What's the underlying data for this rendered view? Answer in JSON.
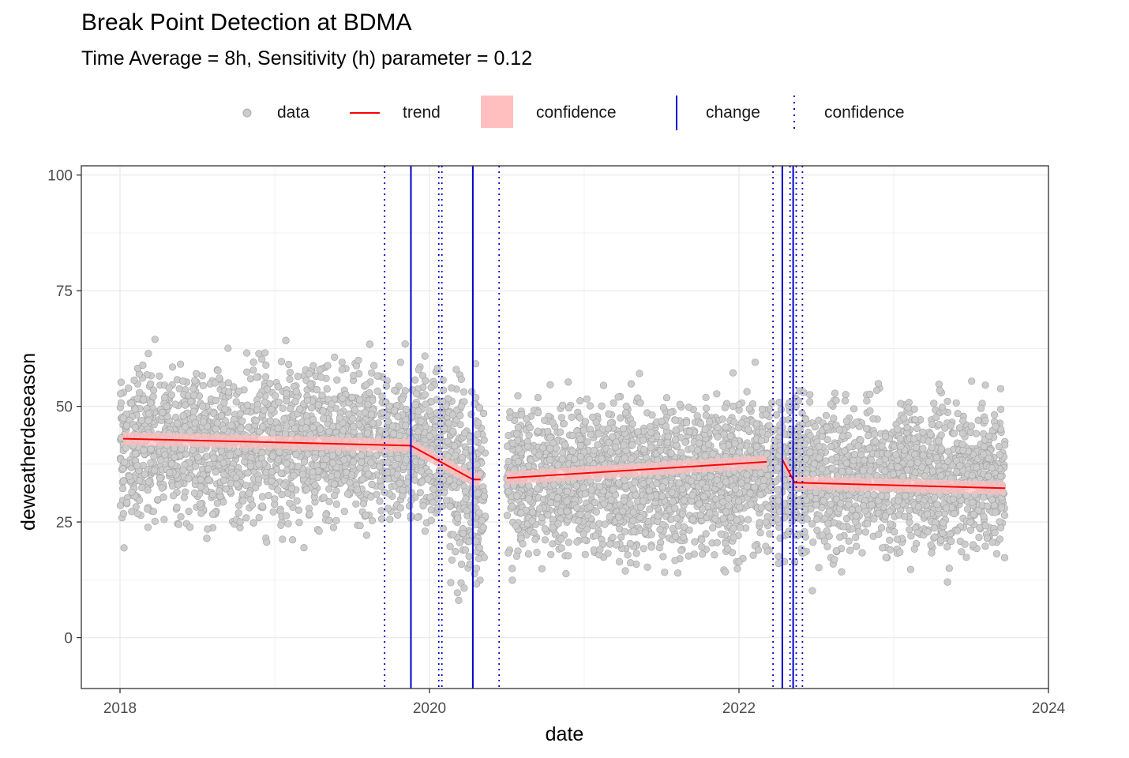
{
  "title": "Break Point Detection at BDMA",
  "subtitle": "Time Average = 8h, Sensitivity (h) parameter = 0.12",
  "legend": {
    "data": "data",
    "trend": "trend",
    "confidence_band": "confidence",
    "change": "change",
    "confidence_lines": "confidence"
  },
  "colors": {
    "points": "#cccccc",
    "point_outline": "#a0a0a0",
    "trend": "#ff0000",
    "band": "#ffbfbf",
    "change": "#0000cc",
    "grid": "#ebebeb"
  },
  "chart_data": {
    "type": "scatter",
    "xlabel": "date",
    "ylabel": "deweatherdeseason",
    "xlim": [
      2017.75,
      2024
    ],
    "ylim": [
      -11,
      102
    ],
    "x_ticks": [
      2018,
      2020,
      2022,
      2024
    ],
    "x_tick_labels": [
      "2018",
      "2020",
      "2022",
      "2024"
    ],
    "y_ticks": [
      0,
      25,
      50,
      75,
      100
    ],
    "y_tick_labels": [
      "0",
      "25",
      "50",
      "75",
      "100"
    ],
    "grid": true,
    "legend_position": "top",
    "data_segments": [
      {
        "start": 2018.0,
        "end": 2020.36,
        "mean": 42,
        "sd": 11
      },
      {
        "start": 2020.5,
        "end": 2023.72,
        "mean": 35,
        "sd": 11
      }
    ],
    "trend": [
      {
        "x": [
          2018.02,
          2019.88
        ],
        "y": [
          43,
          41.5
        ]
      },
      {
        "x": [
          2019.88,
          2020.28,
          2020.33
        ],
        "y": [
          41.5,
          34.2,
          34.2
        ]
      },
      {
        "x": [
          2020.5,
          2022.18
        ],
        "y": [
          34.5,
          38
        ]
      },
      {
        "x": [
          2022.28,
          2022.36,
          2023.72
        ],
        "y": [
          38.5,
          33.5,
          32.3
        ]
      }
    ],
    "change_points": [
      2019.88,
      2020.28,
      2022.28,
      2022.35
    ],
    "confidence_lines": [
      2019.71,
      2020.06,
      2020.08,
      2020.45,
      2022.22,
      2022.33,
      2022.37,
      2022.41
    ]
  }
}
